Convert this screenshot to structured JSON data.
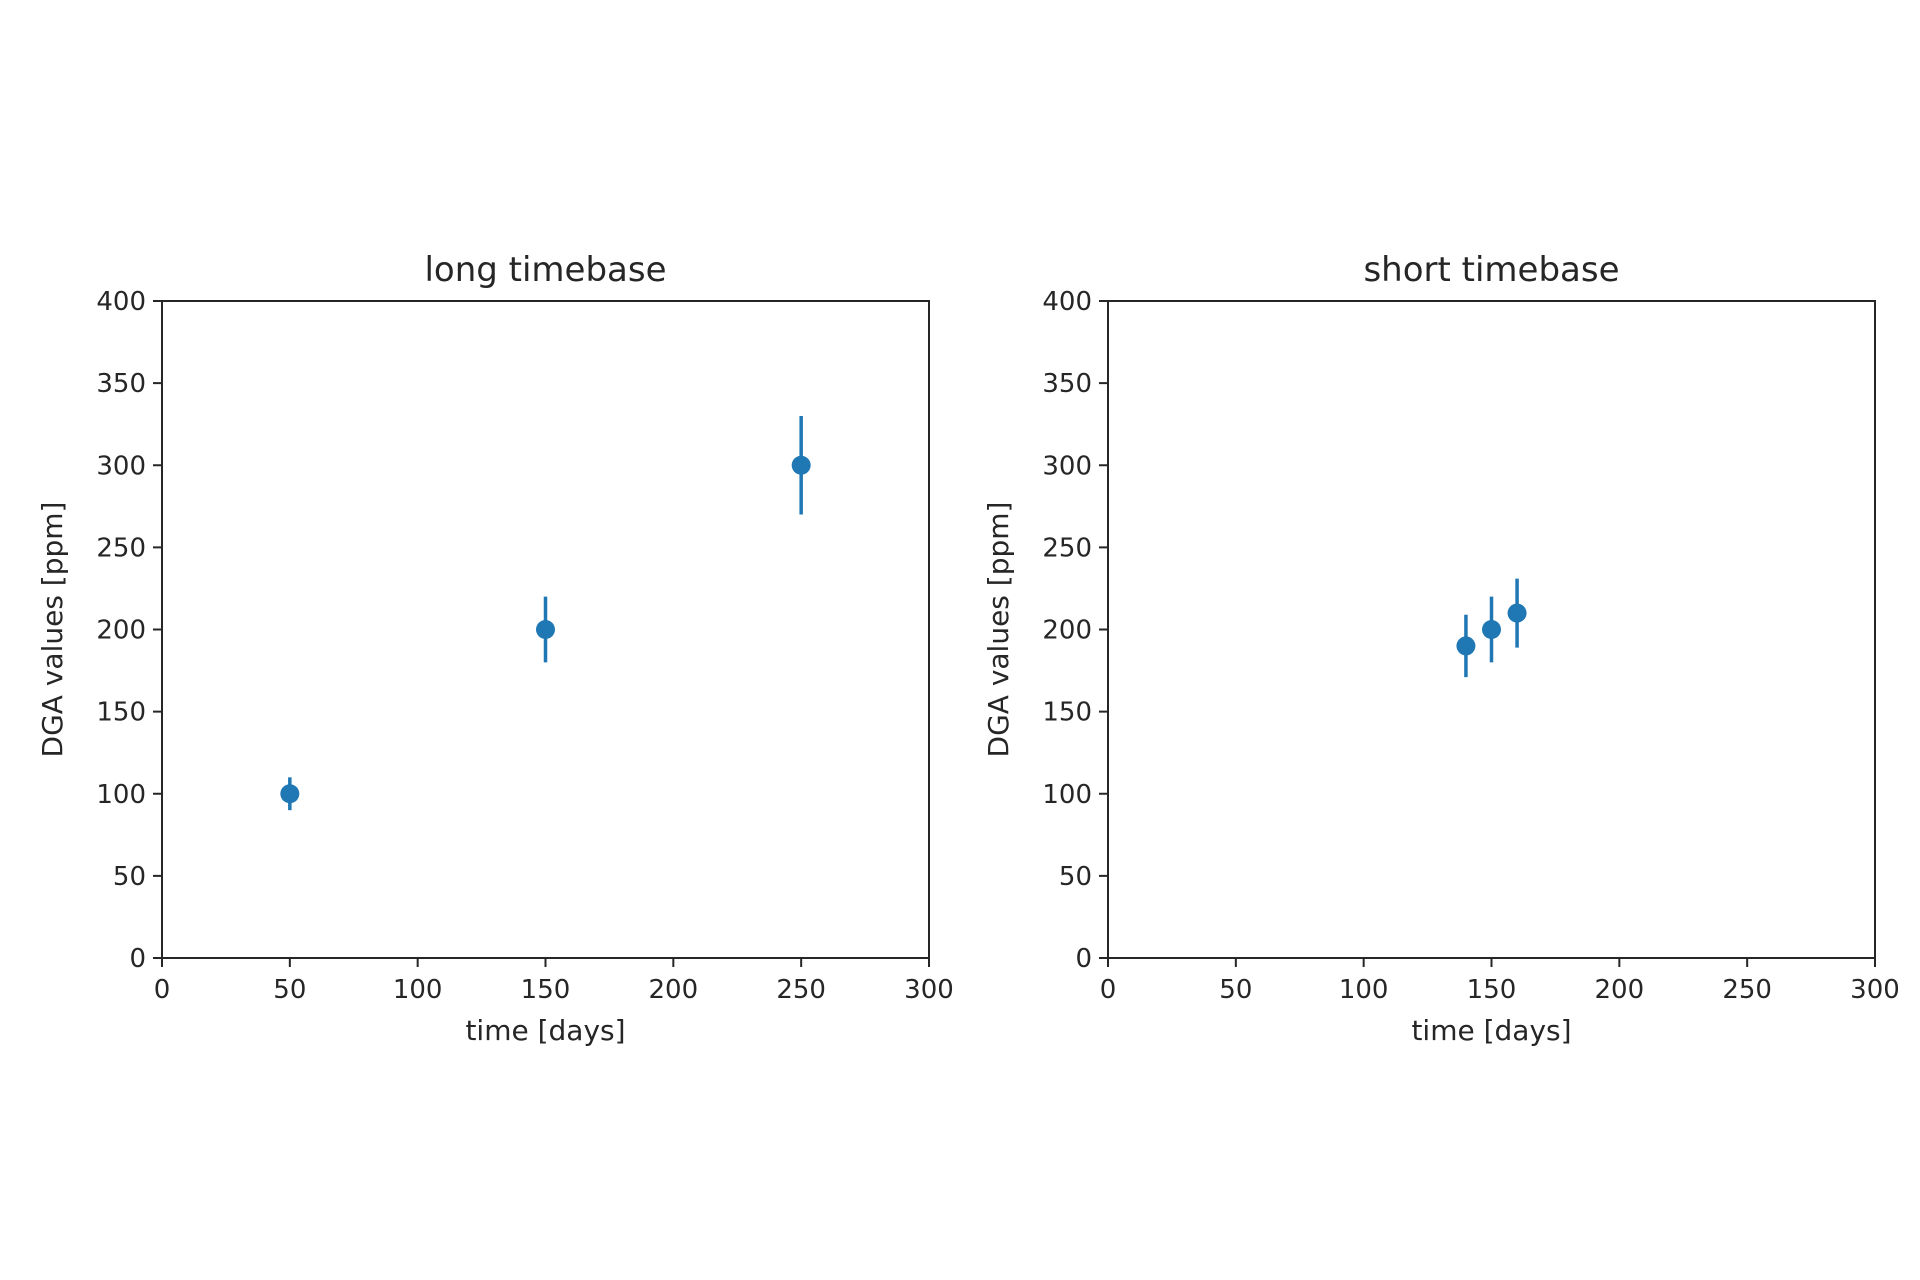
{
  "chart_data": [
    {
      "type": "scatter",
      "title": "long timebase",
      "xlabel": "time [days]",
      "ylabel": "DGA values [ppm]",
      "xlim": [
        0,
        300
      ],
      "ylim": [
        0,
        400
      ],
      "xticks": [
        0,
        50,
        100,
        150,
        200,
        250,
        300
      ],
      "yticks": [
        0,
        50,
        100,
        150,
        200,
        250,
        300,
        350,
        400
      ],
      "grid": false,
      "color": "#1f77b4",
      "points": [
        {
          "x": 50,
          "y": 100,
          "err": 10
        },
        {
          "x": 150,
          "y": 200,
          "err": 20
        },
        {
          "x": 250,
          "y": 300,
          "err": 30
        }
      ]
    },
    {
      "type": "scatter",
      "title": "short timebase",
      "xlabel": "time [days]",
      "ylabel": "DGA values [ppm]",
      "xlim": [
        0,
        300
      ],
      "ylim": [
        0,
        400
      ],
      "xticks": [
        0,
        50,
        100,
        150,
        200,
        250,
        300
      ],
      "yticks": [
        0,
        50,
        100,
        150,
        200,
        250,
        300,
        350,
        400
      ],
      "grid": false,
      "color": "#1f77b4",
      "points": [
        {
          "x": 140,
          "y": 190,
          "err": 19
        },
        {
          "x": 150,
          "y": 200,
          "err": 20
        },
        {
          "x": 160,
          "y": 210,
          "err": 21
        }
      ]
    }
  ]
}
